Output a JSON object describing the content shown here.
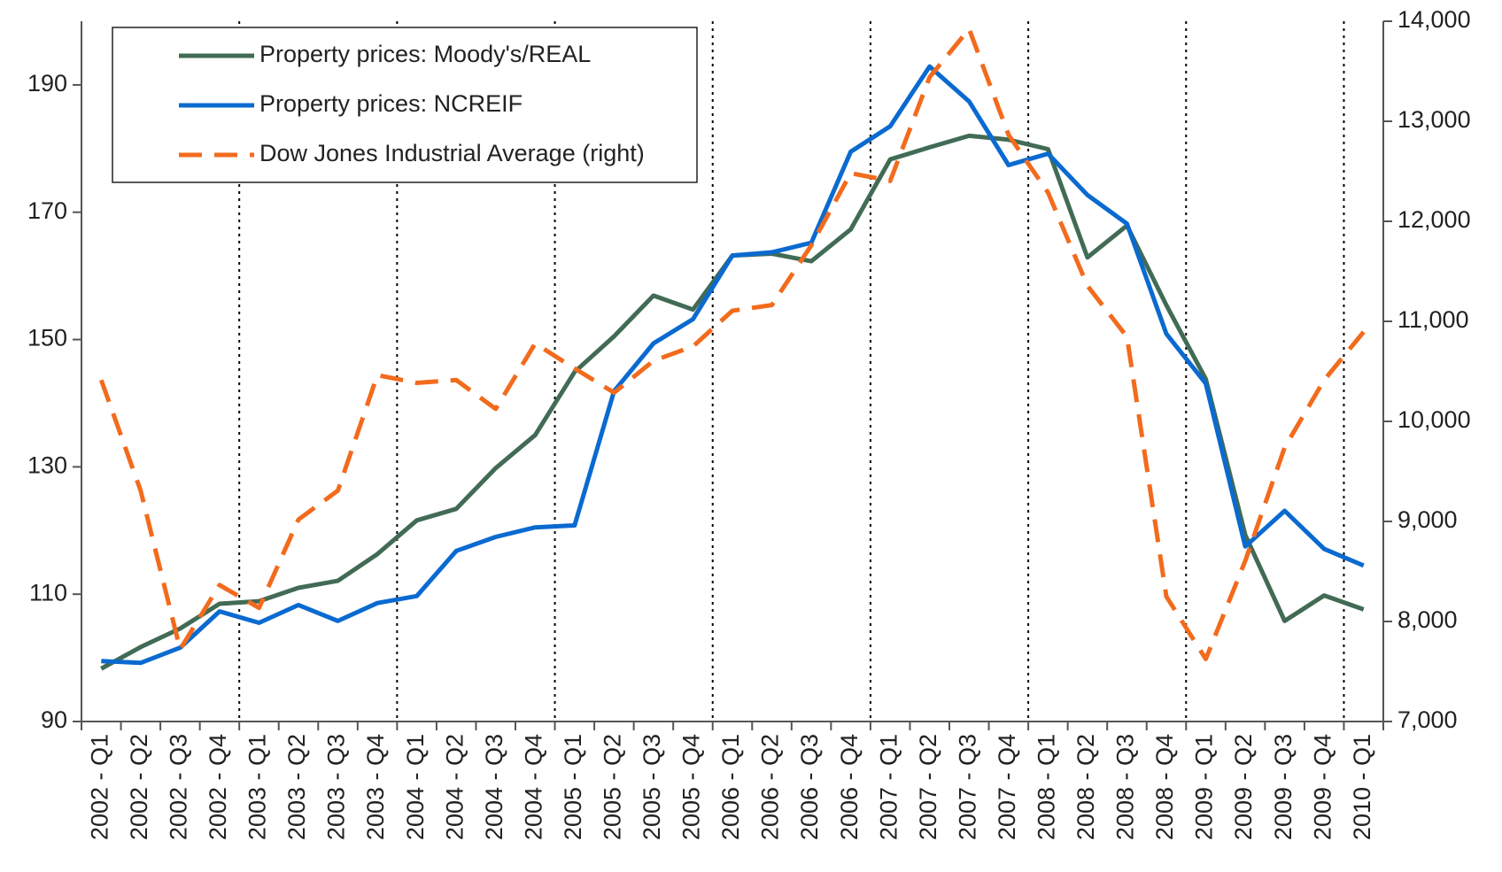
{
  "chart_data": {
    "type": "line",
    "categories": [
      "2002 - Q1",
      "2002 - Q2",
      "2002 - Q3",
      "2002 - Q4",
      "2003 - Q1",
      "2003 - Q2",
      "2003 - Q3",
      "2003 - Q4",
      "2004 - Q1",
      "2004 - Q2",
      "2004 - Q3",
      "2004 - Q4",
      "2005 - Q1",
      "2005 - Q2",
      "2005 - Q3",
      "2005 - Q4",
      "2006 - Q1",
      "2006 - Q2",
      "2006 - Q3",
      "2006 - Q4",
      "2007 - Q1",
      "2007 - Q2",
      "2007 - Q3",
      "2007 - Q4",
      "2008 - Q1",
      "2008 - Q2",
      "2008 - Q3",
      "2008 - Q4",
      "2009 - Q1",
      "2009 - Q2",
      "2009 - Q3",
      "2009 - Q4",
      "2010 - Q1"
    ],
    "series": [
      {
        "name": "Property prices: Moody's/REAL",
        "color": "#426b55",
        "dash": false,
        "values": [
          98.3,
          101.7,
          104.6,
          108.5,
          108.9,
          111,
          112.1,
          116.3,
          121.6,
          123.4,
          129.8,
          135,
          144.9,
          150.5,
          156.9,
          154.7,
          163.2,
          163.5,
          162.3,
          167.3,
          178.3,
          180.2,
          182,
          181.4,
          179.9,
          162.9,
          167.9,
          155.4,
          143.8,
          119.3,
          105.8,
          109.8,
          107.6
        ]
      },
      {
        "name": "Property prices: NCREIF",
        "color": "#0a6ad0",
        "dash": false,
        "values": [
          99.5,
          99.2,
          101.6,
          107.3,
          105.5,
          108.3,
          105.8,
          108.6,
          109.7,
          116.8,
          119,
          120.5,
          120.8,
          141.9,
          149.4,
          153.2,
          163.2,
          163.7,
          165.2,
          179.5,
          183.5,
          192.9,
          187.4,
          177.4,
          179.2,
          172.7,
          168.2,
          150.9,
          143.1,
          117.5,
          123.1,
          117.1,
          114.5
        ]
      },
      {
        "name": "Dow Jones Industrial Average (right)",
        "color": "#f26b1d",
        "dash": true,
        "axis": "y2",
        "values": [
          10413,
          9308,
          7721,
          8365,
          8135,
          9019,
          9308,
          10462,
          10385,
          10413,
          10125,
          10779,
          10529,
          10288,
          10606,
          10750,
          11106,
          11163,
          11760,
          12481,
          12404,
          13442,
          13923,
          12865,
          12288,
          11356,
          10846,
          8250,
          7625,
          8606,
          9740,
          10413,
          10894
        ]
      }
    ],
    "ylim": [
      90,
      200
    ],
    "yticks": [
      90,
      110,
      130,
      150,
      170,
      190
    ],
    "y2lim": [
      7000,
      14000
    ],
    "y2ticks": [
      {
        "value": 7000,
        "label": "7,000"
      },
      {
        "value": 8000,
        "label": "8,000"
      },
      {
        "value": 9000,
        "label": "9,000"
      },
      {
        "value": 10000,
        "label": "10,000"
      },
      {
        "value": 11000,
        "label": "11,000"
      },
      {
        "value": 12000,
        "label": "12,000"
      },
      {
        "value": 13000,
        "label": "13,000"
      },
      {
        "value": 14000,
        "label": "14,000"
      }
    ],
    "legend": "upper left",
    "grid": false
  }
}
